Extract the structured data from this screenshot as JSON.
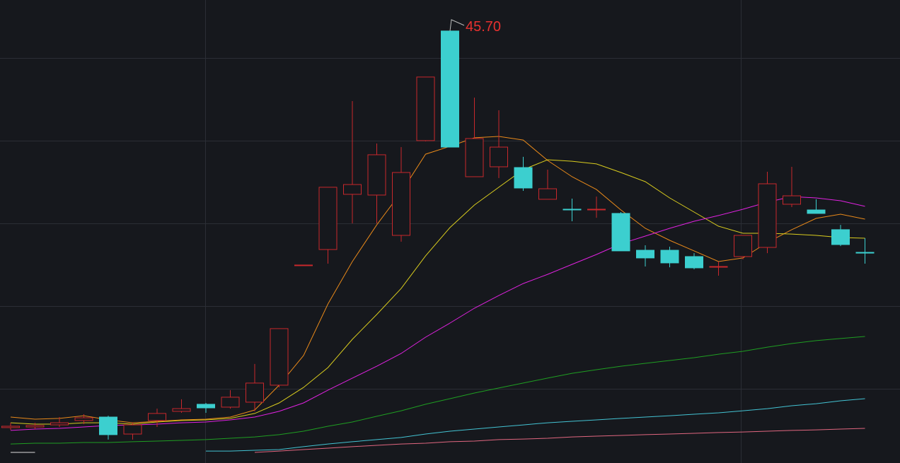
{
  "chart_data": {
    "type": "candlestick",
    "annotation": "45.70",
    "annotation_color": "#e8312f",
    "ylim": [
      10.865,
      48.2
    ],
    "up_color": "#c8282c",
    "down_color": "#3ccfcf",
    "categories": [
      null,
      null,
      null,
      null,
      null,
      null,
      null,
      null,
      null,
      null,
      null,
      null,
      null,
      null,
      null,
      null,
      null,
      null,
      null,
      null,
      null,
      null,
      null,
      null,
      null,
      null,
      null,
      null,
      null,
      null,
      null,
      null,
      null,
      null,
      null,
      null
    ],
    "open": [
      13.72,
      13.77,
      13.94,
      14.29,
      14.57,
      13.2,
      14.29,
      15.03,
      15.6,
      15.37,
      15.77,
      17.14,
      26.83,
      28.08,
      32.53,
      32.47,
      29.22,
      36.86,
      45.7,
      33.95,
      34.75,
      34.69,
      32.13,
      31.33,
      31.33,
      30.99,
      28.02,
      28.02,
      27.51,
      26.71,
      27.51,
      28.25,
      31.73,
      31.27,
      29.68,
      27.85
    ],
    "high": [
      14.11,
      14.11,
      14.57,
      14.8,
      14.68,
      14.11,
      15.25,
      16.0,
      15.71,
      16.74,
      18.85,
      21.7,
      26.83,
      33.1,
      40.05,
      36.63,
      36.34,
      41.99,
      45.7,
      40.33,
      39.31,
      35.55,
      34.52,
      32.18,
      32.35,
      31.1,
      28.42,
      28.31,
      27.79,
      27.11,
      29.22,
      34.35,
      34.75,
      32.13,
      30.07,
      28.99
    ],
    "low": [
      13.54,
      13.6,
      13.77,
      14.0,
      12.75,
      12.75,
      13.77,
      14.91,
      14.91,
      15.25,
      15.03,
      16.96,
      26.83,
      26.94,
      30.19,
      30.19,
      28.71,
      36.8,
      36.34,
      33.95,
      33.84,
      32.81,
      32.13,
      30.36,
      30.64,
      27.97,
      26.71,
      26.65,
      26.48,
      25.97,
      27.28,
      27.79,
      31.5,
      30.99,
      28.36,
      26.94
    ],
    "close": [
      13.83,
      13.89,
      14.11,
      14.51,
      13.15,
      13.94,
      14.86,
      15.25,
      15.31,
      16.17,
      17.31,
      21.7,
      26.83,
      33.1,
      33.32,
      35.72,
      34.29,
      41.99,
      36.34,
      37.03,
      36.34,
      33.04,
      32.98,
      31.32,
      31.33,
      27.97,
      27.4,
      27.0,
      26.6,
      26.71,
      29.22,
      33.38,
      32.41,
      30.99,
      28.48,
      27.79
    ],
    "series": [
      {
        "name": null,
        "color": "#e8891a",
        "values": [
          14.57,
          14.4,
          14.46,
          14.68,
          14.34,
          14.11,
          14.23,
          14.34,
          14.4,
          14.57,
          15.14,
          17.14,
          19.53,
          23.69,
          27.11,
          30.07,
          32.7,
          35.77,
          36.4,
          37.09,
          37.2,
          36.91,
          35.26,
          33.95,
          32.92,
          31.27,
          29.79,
          28.82,
          27.97,
          27.11,
          27.4,
          28.65,
          29.68,
          30.59,
          30.93,
          30.53
        ]
      },
      {
        "name": null,
        "color": "#d9cc1e",
        "values": [
          14.11,
          14.0,
          14.0,
          14.11,
          14.11,
          14.0,
          14.17,
          14.29,
          14.34,
          14.46,
          14.86,
          15.71,
          16.96,
          18.56,
          20.84,
          22.84,
          24.94,
          27.57,
          29.85,
          31.67,
          33.1,
          34.52,
          35.32,
          35.2,
          34.98,
          34.29,
          33.55,
          32.24,
          31.1,
          29.96,
          29.39,
          29.39,
          29.33,
          29.22,
          29.05,
          28.99
        ]
      },
      {
        "name": null,
        "color": "#e022e0",
        "values": [
          13.49,
          13.6,
          13.66,
          13.77,
          13.89,
          13.94,
          14.0,
          14.11,
          14.17,
          14.34,
          14.57,
          15.03,
          15.71,
          16.74,
          17.71,
          18.67,
          19.7,
          21.01,
          22.15,
          23.35,
          24.37,
          25.34,
          26.08,
          26.88,
          27.68,
          28.54,
          29.16,
          29.79,
          30.36,
          30.82,
          31.33,
          31.9,
          32.35,
          32.24,
          32.01,
          31.56
        ]
      },
      {
        "name": null,
        "color": "#1f9e22",
        "values": [
          12.4,
          12.46,
          12.46,
          12.52,
          12.52,
          12.58,
          12.63,
          12.69,
          12.75,
          12.86,
          12.97,
          13.15,
          13.43,
          13.83,
          14.17,
          14.63,
          15.08,
          15.6,
          16.05,
          16.51,
          16.91,
          17.31,
          17.71,
          18.1,
          18.39,
          18.67,
          18.9,
          19.13,
          19.36,
          19.64,
          19.87,
          20.21,
          20.5,
          20.73,
          20.9,
          21.07
        ]
      },
      {
        "name": null,
        "color": "#43c3d3",
        "values": [
          null,
          null,
          null,
          null,
          null,
          null,
          null,
          null,
          11.83,
          11.83,
          11.89,
          11.95,
          12.18,
          12.4,
          12.58,
          12.75,
          12.92,
          13.2,
          13.43,
          13.6,
          13.77,
          13.94,
          14.11,
          14.23,
          14.34,
          14.46,
          14.57,
          14.68,
          14.8,
          14.91,
          15.08,
          15.25,
          15.48,
          15.65,
          15.88,
          16.05
        ]
      },
      {
        "name": null,
        "color": "#e0667f",
        "values": [
          null,
          null,
          null,
          null,
          null,
          null,
          null,
          null,
          null,
          null,
          11.72,
          11.83,
          11.95,
          12.06,
          12.18,
          12.29,
          12.4,
          12.46,
          12.58,
          12.63,
          12.75,
          12.8,
          12.86,
          12.97,
          13.03,
          13.09,
          13.15,
          13.2,
          13.26,
          13.32,
          13.37,
          13.43,
          13.49,
          13.54,
          13.6,
          13.66
        ]
      },
      {
        "name": null,
        "color": "#dddddd",
        "values": [
          11.72,
          11.72,
          null,
          null,
          null,
          null,
          null,
          null,
          null,
          null,
          null,
          null,
          null,
          null,
          null,
          null,
          null,
          null,
          null,
          null,
          null,
          null,
          null,
          null,
          null,
          null,
          null,
          null,
          null,
          null,
          null,
          null,
          null,
          null,
          null,
          null
        ]
      }
    ]
  }
}
